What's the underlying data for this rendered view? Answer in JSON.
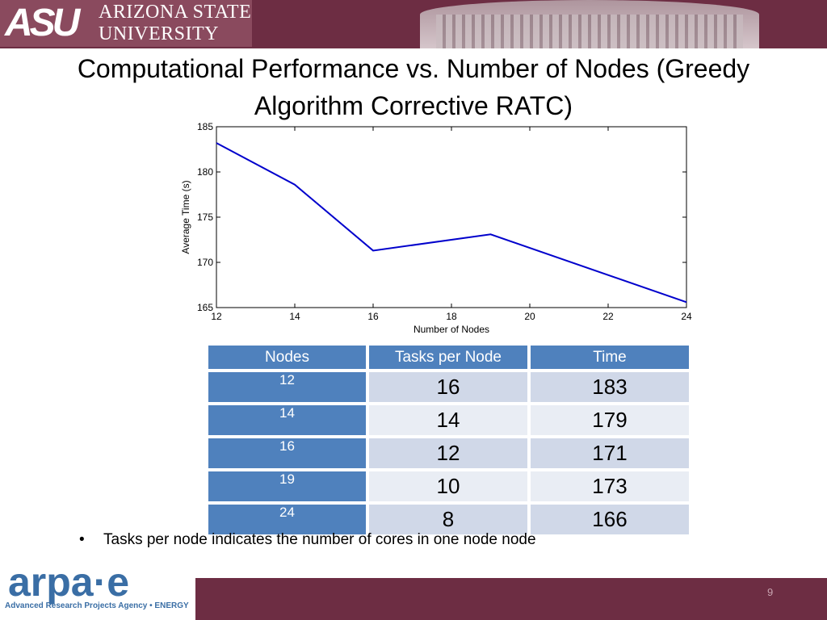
{
  "header": {
    "logo_mark": "ASU",
    "logo_line1": "ARIZONA STATE",
    "logo_line2": "UNIVERSITY"
  },
  "slide": {
    "title_line1": "Computational Performance vs. Number of Nodes (Greedy",
    "title_line2": "Algorithm Corrective RATC)",
    "bullet": "Tasks  per node indicates the number of cores in one node node",
    "page_number": "9"
  },
  "chart_data": {
    "type": "line",
    "x": [
      12,
      14,
      16,
      19,
      24
    ],
    "series": [
      {
        "values": [
          183.2,
          178.6,
          171.3,
          173.1,
          165.6
        ],
        "color": "#0000cc"
      }
    ],
    "xlabel": "Number of Nodes",
    "ylabel": "Average Time (s)",
    "xlim": [
      12,
      24
    ],
    "ylim": [
      165,
      185
    ],
    "xticks": [
      "12",
      "14",
      "16",
      "18",
      "20",
      "22",
      "24"
    ],
    "yticks": [
      "165",
      "170",
      "175",
      "180",
      "185"
    ],
    "grid": false
  },
  "table": {
    "headers": [
      "Nodes",
      "Tasks per Node",
      "Time"
    ],
    "rows": [
      [
        "12",
        "16",
        "183"
      ],
      [
        "14",
        "14",
        "179"
      ],
      [
        "16",
        "12",
        "171"
      ],
      [
        "19",
        "10",
        "173"
      ],
      [
        "24",
        "8",
        "166"
      ]
    ]
  },
  "footer": {
    "arpa_word": "arpa·e",
    "arpa_sub": "Advanced Research Projects Agency • ENERGY"
  }
}
